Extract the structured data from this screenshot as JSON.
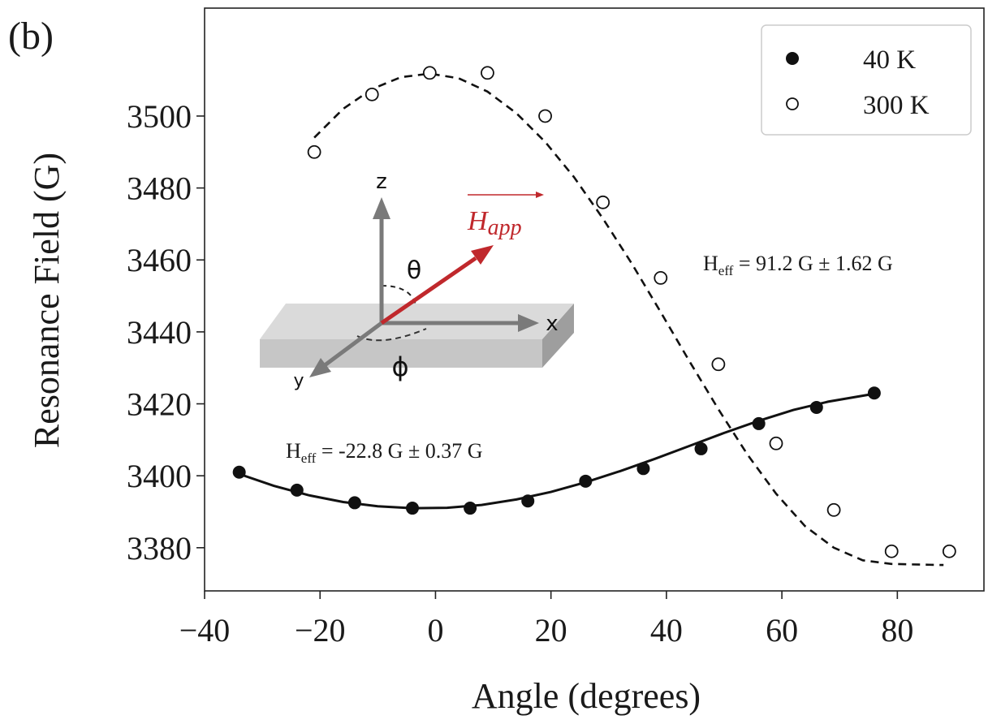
{
  "panel_label": "(b)",
  "chart_data": {
    "type": "scatter",
    "xlabel": "Angle (degrees)",
    "ylabel": "Resonance Field (G)",
    "xlim": [
      -40,
      95
    ],
    "ylim": [
      3368,
      3530
    ],
    "x_ticks": [
      -40,
      -20,
      0,
      20,
      40,
      60,
      80
    ],
    "x_tick_labels": [
      "−40",
      "−20",
      "0",
      "20",
      "40",
      "60",
      "80"
    ],
    "y_ticks": [
      3380,
      3400,
      3420,
      3440,
      3460,
      3480,
      3500
    ],
    "y_tick_labels": [
      "3380",
      "3400",
      "3420",
      "3440",
      "3460",
      "3480",
      "3500"
    ],
    "grid": false,
    "legend_position": "top-right",
    "series": [
      {
        "name": "40 K",
        "marker": "filled-circle",
        "color": "#111111",
        "x": [
          -34,
          -24,
          -14,
          -4,
          6,
          16,
          26,
          36,
          46,
          56,
          66,
          76
        ],
        "y": [
          3401,
          3396,
          3392.5,
          3391,
          3391,
          3393,
          3398.5,
          3402,
          3407.5,
          3414.5,
          3419,
          3423
        ],
        "fit_line": "solid",
        "fit_x": [
          -34,
          -28,
          -22,
          -16,
          -10,
          -4,
          2,
          8,
          14,
          20,
          26,
          32,
          38,
          44,
          50,
          56,
          62,
          68,
          76
        ],
        "fit_y": [
          3400.5,
          3397.2,
          3394.6,
          3392.7,
          3391.5,
          3391.0,
          3391.1,
          3391.9,
          3393.4,
          3395.5,
          3398.2,
          3401.3,
          3404.7,
          3408.3,
          3411.9,
          3415.3,
          3418.3,
          3420.6,
          3422.8
        ]
      },
      {
        "name": "300 K",
        "marker": "open-circle",
        "color": "#111111",
        "x": [
          -21,
          -11,
          -1,
          9,
          19,
          29,
          39,
          49,
          59,
          69,
          79,
          89
        ],
        "y": [
          3490,
          3506,
          3512,
          3512,
          3500,
          3476,
          3455,
          3431,
          3409,
          3390.5,
          3379,
          3379
        ],
        "fit_line": "dashed",
        "fit_x": [
          -21,
          -16,
          -11,
          -6,
          -1,
          4,
          9,
          14,
          19,
          24,
          29,
          34,
          39,
          44,
          49,
          54,
          59,
          64,
          69,
          74,
          79,
          84,
          88
        ],
        "fit_y": [
          3494,
          3502,
          3507.5,
          3510.8,
          3511.8,
          3510.5,
          3506.8,
          3500.8,
          3492.8,
          3483.0,
          3471.5,
          3459.0,
          3445.5,
          3431.8,
          3418.5,
          3406.0,
          3395.0,
          3386.0,
          3380.0,
          3376.5,
          3375.5,
          3375.3,
          3375.2
        ]
      }
    ],
    "annotations": [
      {
        "main": "H",
        "sub": "eff",
        "rest": " = 91.2 G ± 1.62 G"
      },
      {
        "main": "H",
        "sub": "eff",
        "rest": " = -22.8 G ± 0.37 G"
      }
    ]
  },
  "inset": {
    "axis_z": "z",
    "axis_x": "x",
    "axis_y": "y",
    "theta": "θ",
    "phi": "ϕ",
    "vector_label": "H",
    "vector_label_sub": "app",
    "vector_color": "#c0282c",
    "axis_color": "#7a7a7a",
    "slab_color": "#cfcfcf"
  }
}
